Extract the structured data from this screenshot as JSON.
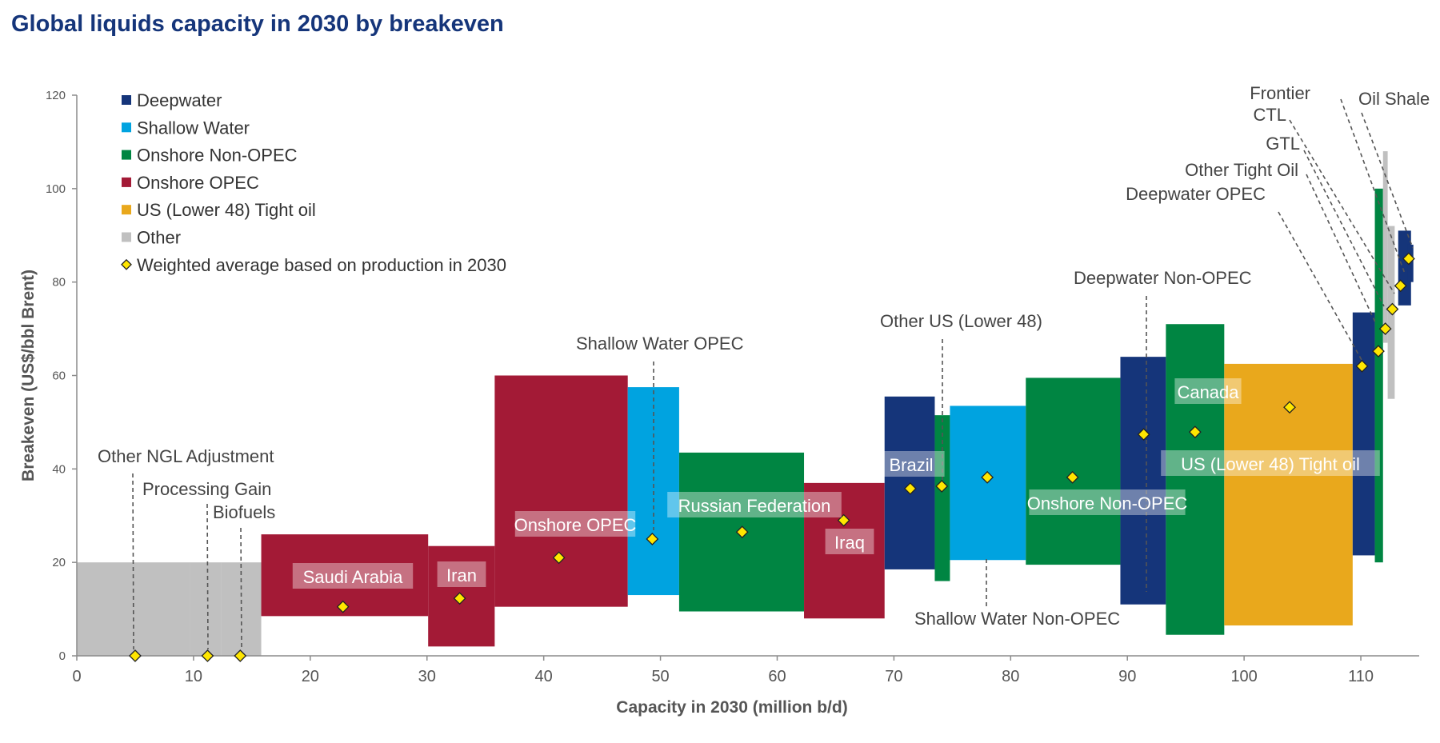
{
  "title": "Global liquids capacity in 2030 by breakeven",
  "chart_data": {
    "type": "bar",
    "subtype": "variable-width cost curve with breakeven range bars",
    "title": "Global liquids capacity in 2030 by breakeven",
    "xlabel": "Capacity in 2030 (million b/d)",
    "ylabel": "Breakeven (US$/bbl Brent)",
    "xlim": [
      0,
      115
    ],
    "ylim": [
      0,
      120
    ],
    "xticks": [
      0,
      10,
      20,
      30,
      40,
      50,
      60,
      70,
      80,
      90,
      100,
      110
    ],
    "yticks": [
      0,
      20,
      40,
      60,
      80,
      100,
      120
    ],
    "grid": false,
    "legend_position": "top-left",
    "legend": [
      {
        "name": "Deepwater",
        "color": "#15357a",
        "marker": "square"
      },
      {
        "name": "Shallow Water",
        "color": "#00a3e0",
        "marker": "square"
      },
      {
        "name": "Onshore Non-OPEC",
        "color": "#008542",
        "marker": "square"
      },
      {
        "name": "Onshore OPEC",
        "color": "#a31a36",
        "marker": "square"
      },
      {
        "name": "US (Lower 48) Tight oil",
        "color": "#e9a81c",
        "marker": "square"
      },
      {
        "name": "Other",
        "color": "#c0c0c0",
        "marker": "square"
      },
      {
        "name": "Weighted average based on production in 2030",
        "color": "#ffe600",
        "marker": "diamond"
      }
    ],
    "segments": [
      {
        "label": "Other NGL Adjustment",
        "category": "Other",
        "x_start": 0,
        "x_end": 9.7,
        "low": 0,
        "high": 20,
        "avg": 0,
        "avg_x": 5
      },
      {
        "label": "Processing Gain",
        "category": "Other",
        "x_start": 9.7,
        "x_end": 12.4,
        "low": 0,
        "high": 20,
        "avg": 0,
        "avg_x": 11.2
      },
      {
        "label": "Biofuels",
        "category": "Other",
        "x_start": 12.4,
        "x_end": 15.8,
        "low": 0,
        "high": 20,
        "avg": 0,
        "avg_x": 14
      },
      {
        "label": "Saudi Arabia",
        "category": "Onshore OPEC",
        "x_start": 15.8,
        "x_end": 30.1,
        "low": 8.5,
        "high": 26,
        "avg": 10.5,
        "avg_x": 22.8
      },
      {
        "label": "Iran",
        "category": "Onshore OPEC",
        "x_start": 30.1,
        "x_end": 35.8,
        "low": 2,
        "high": 23.5,
        "avg": 12.3,
        "avg_x": 32.8
      },
      {
        "label": "Onshore OPEC",
        "category": "Onshore OPEC",
        "x_start": 35.8,
        "x_end": 47.2,
        "low": 10.5,
        "high": 60,
        "avg": 21,
        "avg_x": 41.3
      },
      {
        "label": "Shallow Water OPEC",
        "category": "Shallow Water",
        "x_start": 47.2,
        "x_end": 51.6,
        "low": 13,
        "high": 57.5,
        "avg": 25,
        "avg_x": 49.3
      },
      {
        "label": "Russian Federation",
        "category": "Onshore Non-OPEC",
        "x_start": 51.6,
        "x_end": 62.3,
        "low": 9.5,
        "high": 43.5,
        "avg": 26.5,
        "avg_x": 57
      },
      {
        "label": "Iraq",
        "category": "Onshore OPEC",
        "x_start": 62.3,
        "x_end": 69.2,
        "low": 8,
        "high": 37,
        "avg": 29,
        "avg_x": 65.7
      },
      {
        "label": "Brazil",
        "category": "Deepwater",
        "x_start": 69.2,
        "x_end": 73.5,
        "low": 18.5,
        "high": 55.5,
        "avg": 35.8,
        "avg_x": 71.4
      },
      {
        "label": "Other US (Lower 48)",
        "category": "Onshore Non-OPEC",
        "x_start": 73.5,
        "x_end": 74.8,
        "low": 16,
        "high": 51.5,
        "avg": 36.3,
        "avg_x": 74.1
      },
      {
        "label": "Shallow Water Non-OPEC",
        "category": "Shallow Water",
        "x_start": 74.8,
        "x_end": 81.3,
        "low": 20.5,
        "high": 53.5,
        "avg": 38.2,
        "avg_x": 78
      },
      {
        "label": "Onshore Non-OPEC",
        "category": "Onshore Non-OPEC",
        "x_start": 81.3,
        "x_end": 89.4,
        "low": 19.5,
        "high": 59.5,
        "avg": 38.2,
        "avg_x": 85.3
      },
      {
        "label": "Deepwater Non-OPEC",
        "category": "Deepwater",
        "x_start": 89.4,
        "x_end": 93.3,
        "low": 11,
        "high": 64,
        "avg": 47.4,
        "avg_x": 91.4
      },
      {
        "label": "Canada",
        "category": "Onshore Non-OPEC",
        "x_start": 93.3,
        "x_end": 98.3,
        "low": 4.5,
        "high": 71,
        "avg": 47.9,
        "avg_x": 95.8
      },
      {
        "label": "US (Lower 48) Tight oil",
        "category": "US (Lower 48) Tight oil",
        "x_start": 98.3,
        "x_end": 109.3,
        "low": 6.5,
        "high": 62.5,
        "avg": 53.2,
        "avg_x": 103.9
      },
      {
        "label": "Deepwater OPEC",
        "category": "Deepwater",
        "x_start": 109.3,
        "x_end": 111.2,
        "low": 21.5,
        "high": 73.5,
        "avg": 62,
        "avg_x": 110.1
      },
      {
        "label": "Other Tight Oil",
        "category": "Onshore Non-OPEC",
        "x_start": 111.2,
        "x_end": 111.9,
        "low": 20,
        "high": 100,
        "avg": 65.2,
        "avg_x": 111.5
      },
      {
        "label": "GTL",
        "category": "Other",
        "x_start": 111.9,
        "x_end": 112.3,
        "low": 67,
        "high": 108,
        "avg": 70,
        "avg_x": 112.1
      },
      {
        "label": "CTL",
        "category": "Other",
        "x_start": 112.3,
        "x_end": 112.9,
        "low": 55,
        "high": 92,
        "avg": 74.2,
        "avg_x": 112.7
      },
      {
        "label": "Frontier",
        "category": "Deepwater",
        "x_start": 113.2,
        "x_end": 114.3,
        "low": 75,
        "high": 91,
        "avg": 79.2,
        "avg_x": 113.4
      },
      {
        "label": "Oil Shale",
        "category": "Deepwater",
        "x_start": 114.0,
        "x_end": 114.5,
        "low": 80,
        "high": 88,
        "avg": 85,
        "avg_x": 114.1
      }
    ],
    "annotations": [
      {
        "text": "Other NGL Adjustment",
        "style": "callout"
      },
      {
        "text": "Processing Gain",
        "style": "callout"
      },
      {
        "text": "Biofuels",
        "style": "callout"
      },
      {
        "text": "Saudi Arabia",
        "style": "in-bar"
      },
      {
        "text": "Iran",
        "style": "in-bar"
      },
      {
        "text": "Onshore OPEC",
        "style": "in-bar"
      },
      {
        "text": "Shallow Water OPEC",
        "style": "callout"
      },
      {
        "text": "Russian Federation",
        "style": "in-bar"
      },
      {
        "text": "Iraq",
        "style": "in-bar"
      },
      {
        "text": "Brazil",
        "style": "in-bar"
      },
      {
        "text": "Other US (Lower 48)",
        "style": "callout"
      },
      {
        "text": "Shallow Water Non-OPEC",
        "style": "callout"
      },
      {
        "text": "Onshore Non-OPEC",
        "style": "in-bar"
      },
      {
        "text": "Deepwater Non-OPEC",
        "style": "callout"
      },
      {
        "text": "Canada",
        "style": "in-bar"
      },
      {
        "text": "US (Lower 48) Tight oil",
        "style": "in-bar"
      },
      {
        "text": "Deepwater OPEC",
        "style": "callout"
      },
      {
        "text": "Other Tight Oil",
        "style": "callout"
      },
      {
        "text": "GTL",
        "style": "callout"
      },
      {
        "text": "CTL",
        "style": "callout"
      },
      {
        "text": "Frontier",
        "style": "callout"
      },
      {
        "text": "Oil Shale",
        "style": "callout"
      }
    ]
  }
}
